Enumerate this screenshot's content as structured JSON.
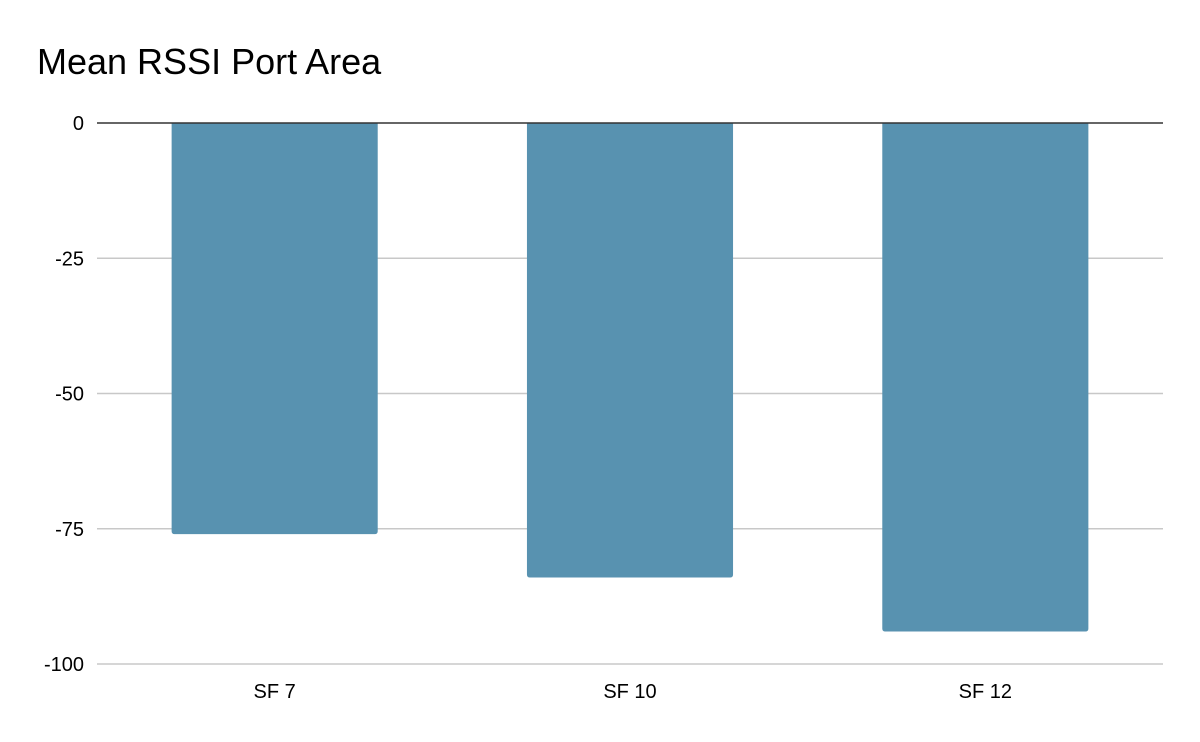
{
  "chart_data": {
    "type": "bar",
    "title": "Mean RSSI Port Area",
    "xlabel": "",
    "ylabel": "",
    "categories": [
      "SF 7",
      "SF 10",
      "SF 12"
    ],
    "values": [
      -76,
      -84,
      -94
    ],
    "ylim": [
      -100,
      0
    ],
    "yticks": [
      "0",
      "-25",
      "-50",
      "-75",
      "-100"
    ],
    "grid": true,
    "legend": "none",
    "bar_color": "#5892b0",
    "grid_color": "#c8c8c8",
    "zero_line_color": "#333333"
  }
}
